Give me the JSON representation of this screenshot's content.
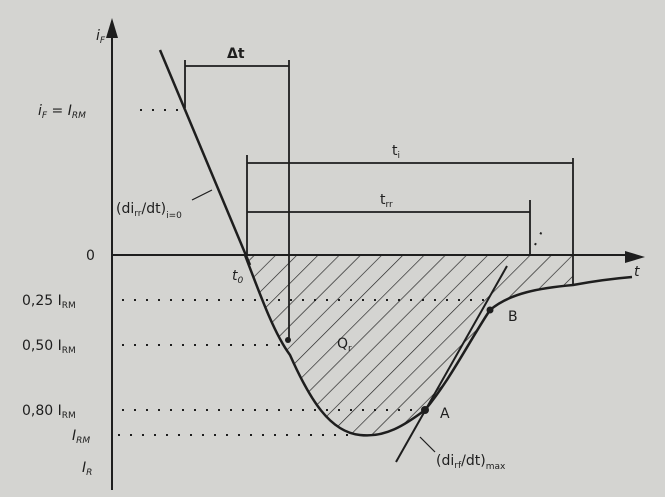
{
  "axes": {
    "y_label": "i",
    "y_label_sub": "F",
    "x_label": "t",
    "y_ticks": [
      {
        "main": "i",
        "sub": "F",
        "rest": " = I",
        "rest_sub": "RM"
      },
      {
        "main": "0",
        "sub": ""
      },
      {
        "main": "0,25 I",
        "sub": "RM"
      },
      {
        "main": "0,50 I",
        "sub": "RM"
      },
      {
        "main": "0,80 I",
        "sub": "RM"
      },
      {
        "main": "I",
        "sub": "RM"
      },
      {
        "main": "I",
        "sub": "R"
      }
    ]
  },
  "annotations": {
    "delta_t": "Δt",
    "t_i": "t",
    "t_i_sub": "i",
    "t_rr": "t",
    "t_rr_sub": "rr",
    "t0": "t",
    "t0_sub": "0",
    "charge": "Q",
    "charge_sub": "r",
    "point_a": "A",
    "point_b": "B",
    "slope_initial": "(di",
    "slope_initial_sub1": "rr",
    "slope_initial_mid": "/dt)",
    "slope_initial_sub2": "i=0",
    "slope_max": "(di",
    "slope_max_sub1": "rf",
    "slope_max_mid": "/dt)",
    "slope_max_sub2": "max"
  },
  "colors": {
    "ink": "#1e1e1e",
    "background": "#d4d4d1"
  }
}
